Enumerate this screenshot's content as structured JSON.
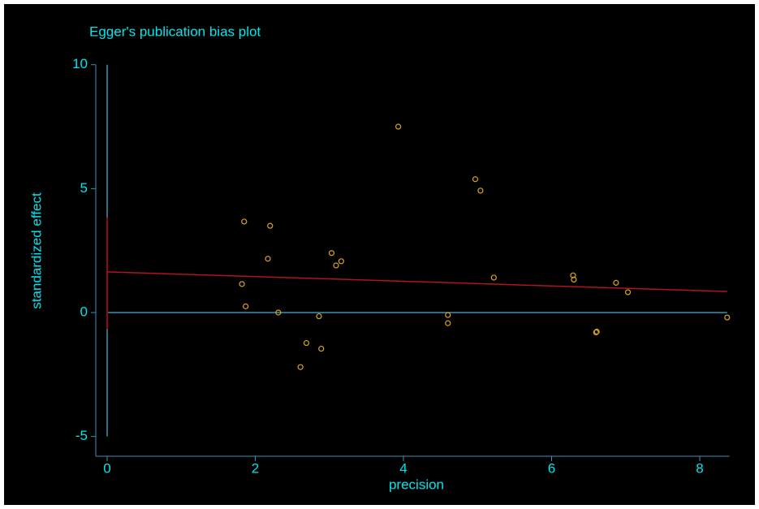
{
  "chart_data": {
    "type": "scatter",
    "title": "Egger's publication bias plot",
    "xlabel": "precision",
    "ylabel": "standardized effect",
    "xlim": [
      0,
      8.4
    ],
    "xticks": [
      0,
      2,
      4,
      6,
      8
    ],
    "ylim": [
      -5,
      10
    ],
    "yticks": [
      -5,
      0,
      5,
      10
    ],
    "series": [
      {
        "name": "studies",
        "color": "#d9a520",
        "x": [
          1.82,
          1.85,
          1.87,
          2.17,
          2.2,
          2.31,
          2.61,
          2.69,
          2.86,
          2.89,
          3.03,
          3.09,
          3.16,
          3.93,
          4.6,
          4.6,
          4.97,
          5.04,
          5.22,
          6.29,
          6.3,
          6.6,
          6.61,
          6.87,
          7.03,
          8.37
        ],
        "values": [
          1.15,
          3.67,
          0.25,
          2.17,
          3.5,
          0.0,
          -2.2,
          -1.23,
          -0.15,
          -1.46,
          2.4,
          1.9,
          2.07,
          7.5,
          -0.1,
          -0.43,
          5.38,
          4.92,
          1.41,
          1.5,
          1.33,
          -0.8,
          -0.77,
          1.2,
          0.82,
          -0.2
        ]
      },
      {
        "name": "regression",
        "color": "#b0141e",
        "x": [
          0,
          8.37
        ],
        "values": [
          1.64,
          0.85
        ]
      }
    ],
    "intercept_ci": [
      -0.66,
      3.84
    ],
    "ci_color": "#8b0a14",
    "axis_color": "#3f8fb5"
  }
}
